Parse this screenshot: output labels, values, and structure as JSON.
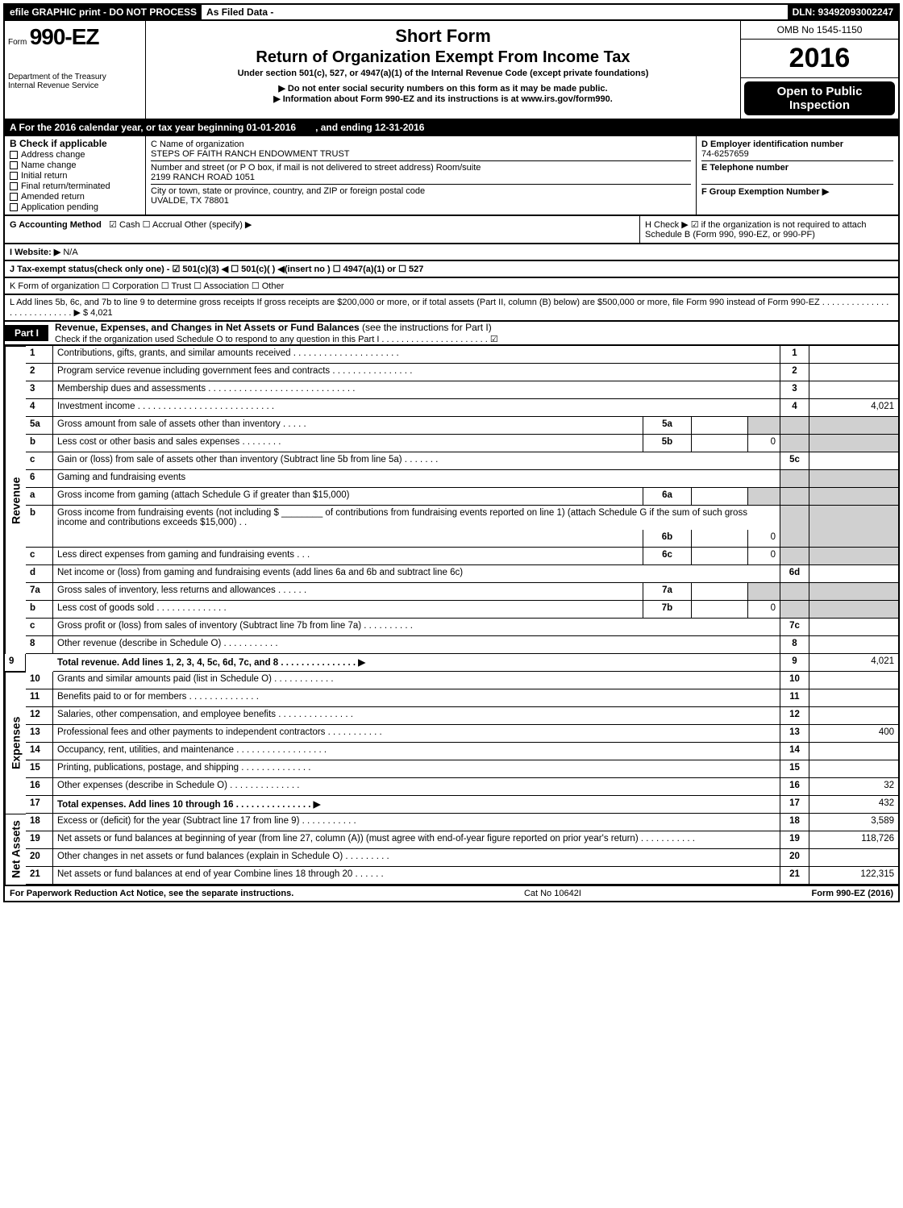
{
  "topbar": {
    "efile": "efile GRAPHIC print - DO NOT PROCESS",
    "asfiled": "As Filed Data -",
    "dln": "DLN: 93492093002247"
  },
  "header": {
    "form_prefix": "Form",
    "form_no": "990-EZ",
    "dept1": "Department of the Treasury",
    "dept2": "Internal Revenue Service",
    "short_form": "Short Form",
    "title": "Return of Organization Exempt From Income Tax",
    "sub": "Under section 501(c), 527, or 4947(a)(1) of the Internal Revenue Code (except private foundations)",
    "sub2a": "▶ Do not enter social security numbers on this form as it may be made public.",
    "sub2b": "▶ Information about Form 990-EZ and its instructions is at www.irs.gov/form990.",
    "omb": "OMB No 1545-1150",
    "year": "2016",
    "open": "Open to Public Inspection"
  },
  "rowA": {
    "label": "A  For the 2016 calendar year, or tax year beginning 01-01-2016",
    "ending": ", and ending 12-31-2016"
  },
  "B": {
    "heading": "B  Check if applicable",
    "items": [
      "Address change",
      "Name change",
      "Initial return",
      "Final return/terminated",
      "Amended return",
      "Application pending"
    ]
  },
  "C": {
    "label": "C Name of organization",
    "name": "STEPS OF FAITH RANCH ENDOWMENT TRUST",
    "street_lbl": "Number and street (or P  O  box, if mail is not delivered to street address)  Room/suite",
    "street": "2199 RANCH ROAD 1051",
    "city_lbl": "City or town, state or province, country, and ZIP or foreign postal code",
    "city": "UVALDE, TX  78801"
  },
  "D": {
    "ein_lbl": "D Employer identification number",
    "ein": "74-6257659",
    "phone_lbl": "E Telephone number",
    "group_lbl": "F Group Exemption Number   ▶"
  },
  "G": {
    "label": "G Accounting Method",
    "opts": "☑ Cash   ☐ Accrual   Other (specify) ▶"
  },
  "H": {
    "text": "H   Check ▶   ☑  if the organization is not required to attach Schedule B (Form 990, 990-EZ, or 990-PF)"
  },
  "I": {
    "label": "I Website: ▶",
    "val": "N/A"
  },
  "J": {
    "text": "J Tax-exempt status(check only one) - ☑ 501(c)(3) ◀  ☐ 501(c)(  ) ◀(insert no ) ☐ 4947(a)(1) or ☐ 527"
  },
  "K": {
    "text": "K Form of organization    ☐ Corporation  ☐ Trust  ☐ Association  ☐ Other"
  },
  "L": {
    "text": "L Add lines 5b, 6c, and 7b to line 9 to determine gross receipts  If gross receipts are $200,000 or more, or if total assets (Part II, column (B) below) are $500,000 or more, file Form 990 instead of Form 990-EZ . . . . . . . . . . . . . . . . . . . . . . . . . . . ▶ $ 4,021"
  },
  "partI": {
    "pill": "Part I",
    "title": "Revenue, Expenses, and Changes in Net Assets or Fund Balances",
    "paren": "(see the instructions for Part I)",
    "sub": "Check if the organization used Schedule O to respond to any question in this Part I . . . . . . . . . . . . . . . . . . . . . . ☑"
  },
  "sections": {
    "revenue": "Revenue",
    "expenses": "Expenses",
    "netassets": "Net Assets"
  },
  "lines": {
    "1": {
      "d": "Contributions, gifts, grants, and similar amounts received . . . . . . . . . . . . . . . . . . . . .",
      "n": "1",
      "v": ""
    },
    "2": {
      "d": "Program service revenue including government fees and contracts . . . . . . . . . . . . . . . .",
      "n": "2",
      "v": ""
    },
    "3": {
      "d": "Membership dues and assessments . . . . . . . . . . . . . . . . . . . . . . . . . . . . .",
      "n": "3",
      "v": ""
    },
    "4": {
      "d": "Investment income . . . . . . . . . . . . . . . . . . . . . . . . . . .",
      "n": "4",
      "v": "4,021"
    },
    "5a": {
      "d": "Gross amount from sale of assets other than inventory . . . . .",
      "m": "5a",
      "mv": ""
    },
    "5b": {
      "d": "Less  cost or other basis and sales expenses . . . . . . . .",
      "m": "5b",
      "mv": "",
      "rv": "0"
    },
    "5c": {
      "d": "Gain or (loss) from sale of assets other than inventory (Subtract line 5b from line 5a) . . . . . . .",
      "n": "5c",
      "v": ""
    },
    "6": {
      "d": "Gaming and fundraising events"
    },
    "6a": {
      "d": "Gross income from gaming (attach Schedule G if greater than $15,000)",
      "m": "6a",
      "mv": ""
    },
    "6b": {
      "d1": "Gross income from fundraising events (not including $",
      "d2": "of contributions from fundraising events reported on line 1) (attach Schedule G if the sum of such gross income and contributions exceeds $15,000)   .  .",
      "m": "6b",
      "mv": "",
      "rv": "0"
    },
    "6c": {
      "d": "Less  direct expenses from gaming and fundraising events      .  .  .",
      "m": "6c",
      "mv": "",
      "rv": "0"
    },
    "6d": {
      "d": "Net income or (loss) from gaming and fundraising events (add lines 6a and 6b and subtract line 6c)",
      "n": "6d",
      "v": ""
    },
    "7a": {
      "d": "Gross sales of inventory, less returns and allowances . . . . . .",
      "m": "7a",
      "mv": ""
    },
    "7b": {
      "d": "Less  cost of goods sold         .  .  .  .  .  .  .  .  .  .  .  .  .  .",
      "m": "7b",
      "mv": "",
      "rv": "0"
    },
    "7c": {
      "d": "Gross profit or (loss) from sales of inventory (Subtract line 7b from line 7a) . . . . . . . . . .",
      "n": "7c",
      "v": ""
    },
    "8": {
      "d": "Other revenue (describe in Schedule O)                  .  .  .  .  .  .  .  .  .  .  .",
      "n": "8",
      "v": ""
    },
    "9": {
      "d": "Total revenue. Add lines 1, 2, 3, 4, 5c, 6d, 7c, and 8 .  .  .  .  .  .  .  .  .  .  .  .  .  .  .   ▶",
      "n": "9",
      "v": "4,021"
    },
    "10": {
      "d": "Grants and similar amounts paid (list in Schedule O)         .  .  .  .  .  .  .  .  .  .  .  .",
      "n": "10",
      "v": ""
    },
    "11": {
      "d": "Benefits paid to or for members               .  .  .  .  .  .  .  .  .  .  .  .  .  .",
      "n": "11",
      "v": ""
    },
    "12": {
      "d": "Salaries, other compensation, and employee benefits .  .  .  .  .  .  .  .  .  .  .  .  .  .  .",
      "n": "12",
      "v": ""
    },
    "13": {
      "d": "Professional fees and other payments to independent contractors  .  .  .  .  .  .  .  .  .  .  .",
      "n": "13",
      "v": "400"
    },
    "14": {
      "d": "Occupancy, rent, utilities, and maintenance .  .  .  .  .  .  .  .  .  .  .  .  .  .  .  .  .  .",
      "n": "14",
      "v": ""
    },
    "15": {
      "d": "Printing, publications, postage, and shipping         .  .  .  .  .  .  .  .  .  .  .  .  .  .",
      "n": "15",
      "v": ""
    },
    "16": {
      "d": "Other expenses (describe in Schedule O)            .  .  .  .  .  .  .  .  .  .  .  .  .  .",
      "n": "16",
      "v": "32"
    },
    "17": {
      "d": "Total expenses. Add lines 10 through 16       .  .  .  .  .  .  .  .  .  .  .  .  .  .  .   ▶",
      "n": "17",
      "v": "432"
    },
    "18": {
      "d": "Excess or (deficit) for the year (Subtract line 17 from line 9)      .  .  .  .  .  .  .  .  .  .  .",
      "n": "18",
      "v": "3,589"
    },
    "19": {
      "d": "Net assets or fund balances at beginning of year (from line 27, column (A)) (must agree with end-of-year figure reported on prior year's return)         .  .  .  .  .  .  .  .  .  .  .",
      "n": "19",
      "v": "118,726"
    },
    "20": {
      "d": "Other changes in net assets or fund balances (explain in Schedule O)    .  .  .  .  .  .  .  .  .",
      "n": "20",
      "v": ""
    },
    "21": {
      "d": "Net assets or fund balances at end of year  Combine lines 18 through 20      .  .  .  .  .  .",
      "n": "21",
      "v": "122,315"
    }
  },
  "footer": {
    "left": "For Paperwork Reduction Act Notice, see the separate instructions.",
    "mid": "Cat  No  10642I",
    "right": "Form 990-EZ (2016)"
  }
}
